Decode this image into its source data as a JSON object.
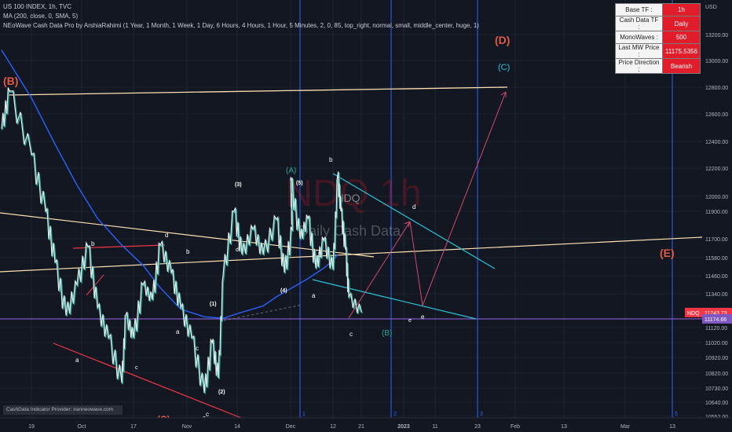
{
  "header": {
    "symbol_line": "US 100 INDEX, 1h, TVC",
    "ma_line": "MA (200, close, 0, SMA, 5)",
    "indicator_line": "NEoWave Cash Data Pro by ArshiaRahimi (1 Year, 1 Month, 1 Week, 1 Day, 6 Hours, 4 Hours, 1 Hour, 5 Minutes, 2, 0, 85, top_right, normal, small, middle_center, huge, 1)"
  },
  "info_panel": {
    "rows": [
      {
        "label": "Base TF :",
        "value": "1h"
      },
      {
        "label": "Cash Data TF :",
        "value": "Daily"
      },
      {
        "label": "MonoWaves :",
        "value": "500"
      },
      {
        "label": "Last MW Price :",
        "value": "11175.5356"
      },
      {
        "label": "Price Direction :",
        "value": "Bearish"
      }
    ]
  },
  "watermark": {
    "ticker": "NDQ",
    "timeframe": "1h",
    "subtitle": "Daily Cash Data",
    "overlay_ticker": "NDQ"
  },
  "credit": "CashData Indicator Provider: iranneowave.com",
  "colors": {
    "background": "#131722",
    "price_line_white": "#e8e8e8",
    "price_line_teal": "#26a69a",
    "ma_line": "#2962ff",
    "trendline_cream": "#ffe0b2",
    "trendline_red": "#f23645",
    "triangle_teal": "#26c6da",
    "projection": "#d04a6a",
    "horizontal_level": "#7e57c2",
    "vertical_markers": "#2962ff",
    "last_price_bg": "#f23645"
  },
  "chart_data": {
    "type": "line",
    "currency": "USD",
    "y_axis": {
      "ticks": [
        13200,
        13000,
        12800,
        12600,
        12400,
        12200,
        12000,
        11900,
        11700,
        11580,
        11460,
        11340,
        11120,
        11020,
        10920,
        10820,
        10730,
        10640,
        10552
      ],
      "tick_labels": [
        "13200.00",
        "13000.00",
        "12800.00",
        "12600.00",
        "12400.00",
        "12200.00",
        "12000.00",
        "11900.00",
        "11700.00",
        "11580.00",
        "11460.00",
        "11340.00",
        "11120.00",
        "11020.00",
        "10920.00",
        "10820.00",
        "10730.00",
        "10640.00",
        "10552.00"
      ]
    },
    "x_axis": {
      "labels": [
        "19",
        "Oct",
        "17",
        "Nov",
        "14",
        "Dec",
        "12",
        "21",
        "2023",
        "11",
        "23",
        "Feb",
        "13",
        "Mar",
        "13"
      ]
    },
    "last_price": {
      "symbol": "NDQ",
      "value": 11243.73
    },
    "horizontal_level": {
      "value": 11174.66,
      "label": "11174.66"
    },
    "vertical_markers": [
      "1",
      "2",
      "3",
      "5"
    ],
    "series": [
      {
        "name": "NDQ",
        "x": [
          "Sep 13",
          "Sep 15",
          "Sep 19",
          "Sep 22",
          "Sep 24",
          "Sep 27",
          "Sep 30",
          "Oct 3",
          "Oct 6",
          "Oct 10",
          "Oct 13",
          "Oct 14",
          "Oct 17",
          "Oct 19",
          "Oct 21",
          "Oct 24",
          "Oct 27",
          "Oct 30",
          "Nov 2",
          "Nov 4",
          "Nov 7",
          "Nov 9",
          "Nov 10",
          "Nov 13",
          "Nov 15",
          "Nov 18",
          "Nov 21",
          "Nov 25",
          "Nov 28",
          "Nov 30",
          "Dec 1",
          "Dec 3",
          "Dec 5",
          "Dec 7",
          "Dec 9",
          "Dec 12",
          "Dec 14",
          "Dec 15",
          "Dec 17",
          "Dec 19",
          "Dec 21"
        ],
        "y": [
          12490,
          12770,
          12300,
          11900,
          11550,
          11200,
          11400,
          11650,
          11250,
          11050,
          10760,
          11200,
          11050,
          11400,
          11300,
          11660,
          11480,
          11250,
          11050,
          10700,
          11020,
          10790,
          11460,
          11900,
          11600,
          11770,
          11600,
          11840,
          11480,
          11760,
          12120,
          11700,
          11850,
          11510,
          11690,
          11500,
          12150,
          11900,
          11630,
          11320,
          11220
        ]
      },
      {
        "name": "MA (200, close, 0, SMA, 5)",
        "x": [
          "Sep 13",
          "Sep 19",
          "Sep 24",
          "Sep 30",
          "Oct 6",
          "Oct 13",
          "Oct 19",
          "Oct 24",
          "Oct 30",
          "Nov 4",
          "Nov 10",
          "Nov 15",
          "Nov 21",
          "Nov 25",
          "Nov 30",
          "Dec 5",
          "Dec 9",
          "Dec 12",
          "Dec 14"
        ],
        "y": [
          13080,
          12720,
          12380,
          12080,
          11850,
          11660,
          11530,
          11380,
          11240,
          11190,
          11180,
          11220,
          11260,
          11320,
          11380,
          11440,
          11510,
          11560,
          11600
        ]
      }
    ],
    "wave_labels": [
      "(B)",
      "(D)",
      "(C)",
      "(E)",
      "(A)",
      "(3)",
      "(5)",
      "(4)",
      "(1)",
      "(2)",
      "(B)",
      "(C)",
      "a",
      "b",
      "c",
      "d",
      "e",
      "b",
      "d",
      "a",
      "c",
      "a",
      "b",
      "c",
      "b",
      "a",
      "c",
      "d",
      "e"
    ]
  }
}
